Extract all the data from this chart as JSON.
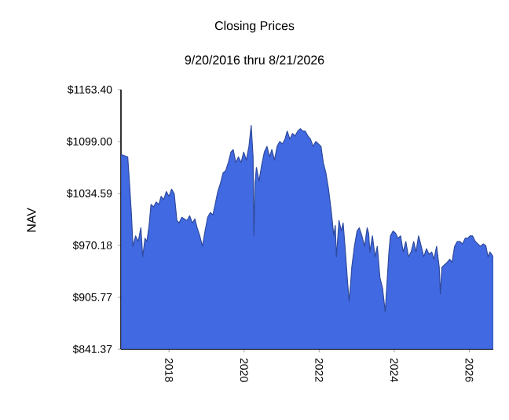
{
  "chart_data": {
    "type": "area",
    "title": "Closing Prices",
    "subtitle": "9/20/2016 thru 8/21/2026",
    "ylabel": "NAV",
    "x": [
      2016.72,
      2016.9,
      2016.94,
      2017.0,
      2017.04,
      2017.11,
      2017.18,
      2017.25,
      2017.3,
      2017.36,
      2017.41,
      2017.47,
      2017.52,
      2017.59,
      2017.66,
      2017.73,
      2017.79,
      2017.86,
      2017.93,
      2018.0,
      2018.07,
      2018.14,
      2018.21,
      2018.27,
      2018.34,
      2018.48,
      2018.55,
      2018.62,
      2018.69,
      2018.75,
      2018.82,
      2018.89,
      2018.96,
      2019.03,
      2019.1,
      2019.17,
      2019.23,
      2019.3,
      2019.37,
      2019.44,
      2019.51,
      2019.58,
      2019.65,
      2019.71,
      2019.78,
      2019.85,
      2019.92,
      2019.99,
      2020.06,
      2020.13,
      2020.19,
      2020.24,
      2020.26,
      2020.29,
      2020.33,
      2020.4,
      2020.47,
      2020.54,
      2020.61,
      2020.68,
      2020.74,
      2020.81,
      2020.88,
      2020.95,
      2021.02,
      2021.09,
      2021.15,
      2021.22,
      2021.29,
      2021.36,
      2021.43,
      2021.5,
      2021.57,
      2021.63,
      2021.7,
      2021.77,
      2021.84,
      2021.91,
      2021.98,
      2022.05,
      2022.11,
      2022.18,
      2022.25,
      2022.32,
      2022.39,
      2022.43,
      2022.46,
      2022.53,
      2022.59,
      2022.64,
      2022.7,
      2022.76,
      2022.8,
      2022.84,
      2022.87,
      2022.94,
      2023.01,
      2023.07,
      2023.14,
      2023.21,
      2023.28,
      2023.32,
      2023.35,
      2023.42,
      2023.49,
      2023.55,
      2023.62,
      2023.69,
      2023.76,
      2023.8,
      2023.86,
      2023.9,
      2023.97,
      2024.04,
      2024.1,
      2024.17,
      2024.24,
      2024.31,
      2024.38,
      2024.45,
      2024.52,
      2024.58,
      2024.65,
      2024.72,
      2024.79,
      2024.86,
      2024.93,
      2025.0,
      2025.06,
      2025.13,
      2025.2,
      2025.23,
      2025.27,
      2025.34,
      2025.41,
      2025.48,
      2025.54,
      2025.61,
      2025.68,
      2025.75,
      2025.82,
      2025.89,
      2025.96,
      2026.02,
      2026.09,
      2026.16,
      2026.23,
      2026.3,
      2026.37,
      2026.44,
      2026.5,
      2026.55,
      2026.64
    ],
    "series": [
      {
        "color": "#4169e1",
        "values": [
          1083,
          1080,
          1053,
          1008,
          969,
          982,
          975,
          992,
          956,
          979,
          975,
          995,
          1021,
          1018,
          1024,
          1021,
          1031,
          1027,
          1037,
          1031,
          1040,
          1034,
          1001,
          998,
          1005,
          1001,
          1007,
          998,
          1003,
          992,
          982,
          969,
          988,
          1005,
          1011,
          1008,
          1021,
          1037,
          1047,
          1060,
          1063,
          1073,
          1086,
          1089,
          1073,
          1080,
          1073,
          1086,
          1076,
          1093,
          1119,
          1080,
          982,
          1047,
          1067,
          1050,
          1070,
          1086,
          1093,
          1080,
          1089,
          1076,
          1093,
          1099,
          1096,
          1102,
          1112,
          1102,
          1109,
          1106,
          1112,
          1115,
          1112,
          1112,
          1106,
          1102,
          1093,
          1099,
          1096,
          1093,
          1073,
          1060,
          1040,
          1014,
          982,
          995,
          956,
          1001,
          988,
          998,
          962,
          923,
          901,
          923,
          943,
          969,
          988,
          992,
          982,
          969,
          992,
          985,
          962,
          982,
          956,
          969,
          930,
          917,
          888,
          917,
          962,
          982,
          988,
          985,
          979,
          982,
          962,
          975,
          956,
          962,
          975,
          962,
          982,
          969,
          956,
          966,
          959,
          962,
          953,
          969,
          943,
          910,
          943,
          946,
          949,
          953,
          949,
          969,
          975,
          975,
          972,
          979,
          979,
          982,
          982,
          975,
          972,
          969,
          972,
          970,
          956,
          962,
          956
        ]
      }
    ],
    "xlim": [
      2016.72,
      2026.64
    ],
    "xticks": [
      2018,
      2020,
      2022,
      2024,
      2026
    ],
    "ylim": [
      841.37,
      1163.4
    ],
    "yticks": [
      {
        "value": 841.37,
        "label": "$841.37"
      },
      {
        "value": 905.77,
        "label": "$905.77"
      },
      {
        "value": 970.18,
        "label": "$970.18"
      },
      {
        "value": 1034.59,
        "label": "$1034.59"
      },
      {
        "value": 1099.0,
        "label": "$1099.00"
      },
      {
        "value": 1163.4,
        "label": "$1163.40"
      }
    ]
  }
}
